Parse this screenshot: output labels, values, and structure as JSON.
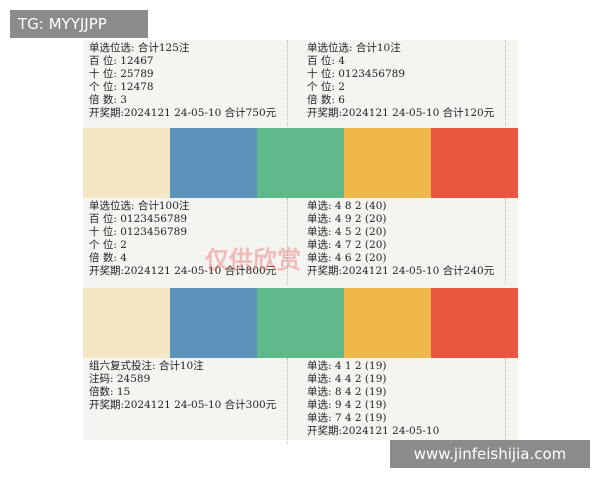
{
  "header": {
    "tag": "TG: MYYJJPP"
  },
  "footer": {
    "url": "www.jinfeishijia.com"
  },
  "watermark": "仅供欣赏",
  "tickets": [
    {
      "lines": [
        "单选位选:   合计125注",
        "百 位: 12467",
        "十 位: 25789",
        "个 位: 12478",
        "倍 数: 3",
        "开奖期:2024121 24-05-10  合计750元"
      ]
    },
    {
      "lines": [
        "单选位选:   合计10注",
        "百 位: 4",
        "十 位: 0123456789",
        "个 位: 2",
        "倍 数: 6",
        "开奖期:2024121 24-05-10  合计120元"
      ]
    },
    {
      "lines": [
        "单选位选:   合计100注",
        "百 位: 0123456789",
        "十 位: 0123456789",
        "个 位: 2",
        "倍 数: 4",
        "开奖期:2024121 24-05-10  合计800元"
      ]
    },
    {
      "lines": [
        "单选: 4 8 2   (40)",
        "单选: 4 9 2   (20)",
        "单选: 4 5 2   (20)",
        "单选: 4 7 2   (20)",
        "单选: 4 6 2   (20)",
        "开奖期:2024121 24-05-10  合计240元"
      ]
    },
    {
      "lines": [
        "组六复式投注:  合计10注",
        "注码: 24589",
        "倍数: 15",
        "开奖期:2024121 24-05-10  合计300元"
      ]
    },
    {
      "lines": [
        "单选: 4 1 2   (19)",
        "单选: 4 4 2   (19)",
        "单选: 8 4 2   (19)",
        "单选: 9 4 2   (19)",
        "单选: 7 4 2   (19)",
        "开奖期:2024121 24-05-10"
      ]
    }
  ]
}
